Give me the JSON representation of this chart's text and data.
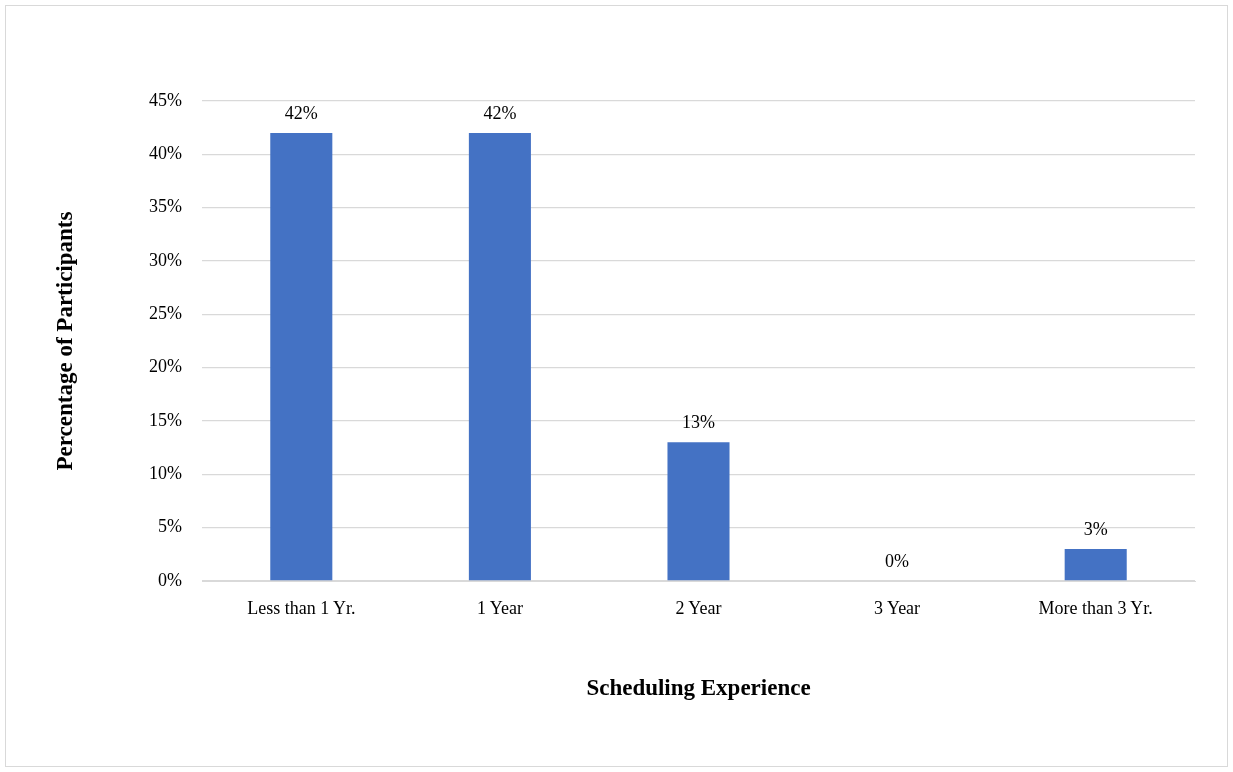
{
  "chart_data": {
    "type": "bar",
    "xlabel": "Scheduling Experience",
    "ylabel": "Percentage of Participants",
    "categories": [
      "Less than 1 Yr.",
      "1 Year",
      "2 Year",
      "3 Year",
      "More than 3 Yr."
    ],
    "values": [
      42,
      42,
      13,
      0,
      3
    ],
    "value_labels": [
      "42%",
      "42%",
      "13%",
      "0%",
      "3%"
    ],
    "color": "#4472c4",
    "ylim": [
      0,
      45
    ],
    "yticks": [
      {
        "value": 0,
        "label": "0%"
      },
      {
        "value": 5,
        "label": "5%"
      },
      {
        "value": 10,
        "label": "10%"
      },
      {
        "value": 15,
        "label": "15%"
      },
      {
        "value": 20,
        "label": "20%"
      },
      {
        "value": 25,
        "label": "25%"
      },
      {
        "value": 30,
        "label": "30%"
      },
      {
        "value": 35,
        "label": "35%"
      },
      {
        "value": 40,
        "label": "40%"
      },
      {
        "value": 45,
        "label": "45%"
      }
    ],
    "grid": "y",
    "legend": false
  }
}
